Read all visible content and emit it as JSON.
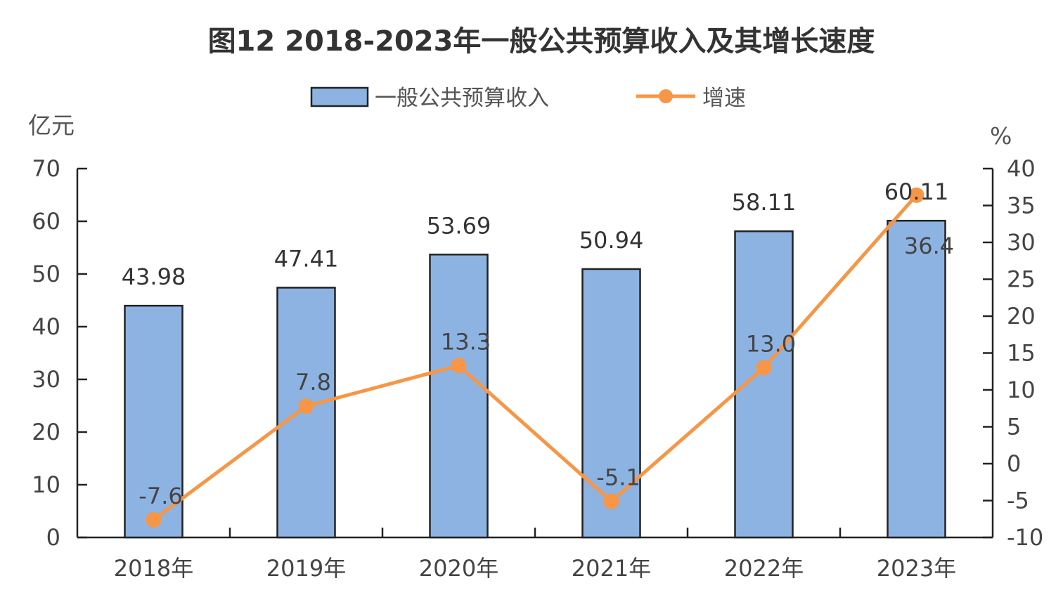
{
  "chart_data": {
    "type": "bar",
    "title": "图12 2018-2023年一般公共预算收入及其增长速度",
    "categories": [
      "2018年",
      "2019年",
      "2020年",
      "2021年",
      "2022年",
      "2023年"
    ],
    "series": [
      {
        "name": "一般公共预算收入",
        "type": "bar",
        "axis": "left",
        "values": [
          43.98,
          47.41,
          53.69,
          50.94,
          58.11,
          60.11
        ],
        "labels": [
          "43.98",
          "47.41",
          "53.69",
          "50.94",
          "58.11",
          "60.11"
        ],
        "color": "#8DB3E2"
      },
      {
        "name": "增速",
        "type": "line",
        "axis": "right",
        "values": [
          -7.6,
          7.8,
          13.3,
          -5.1,
          13.0,
          36.4
        ],
        "labels": [
          "-7.6",
          "7.8",
          "13.3",
          "-5.1",
          "13.0",
          "36.4"
        ],
        "color": "#F79646"
      }
    ],
    "y_left": {
      "unit": "亿元",
      "ylim": [
        0,
        70
      ],
      "ticks": [
        0,
        10,
        20,
        30,
        40,
        50,
        60,
        70
      ],
      "tick_labels": [
        "0",
        "10",
        "20",
        "30",
        "40",
        "50",
        "60",
        "70"
      ]
    },
    "y_right": {
      "unit": "%",
      "ylim": [
        -10,
        40
      ],
      "ticks": [
        -10,
        -5,
        0,
        5,
        10,
        15,
        20,
        25,
        30,
        35,
        40
      ],
      "tick_labels": [
        "-10",
        "-5",
        "0",
        "5",
        "10",
        "15",
        "20",
        "25",
        "30",
        "35",
        "40"
      ]
    },
    "legend_position": "top",
    "grid": false
  }
}
